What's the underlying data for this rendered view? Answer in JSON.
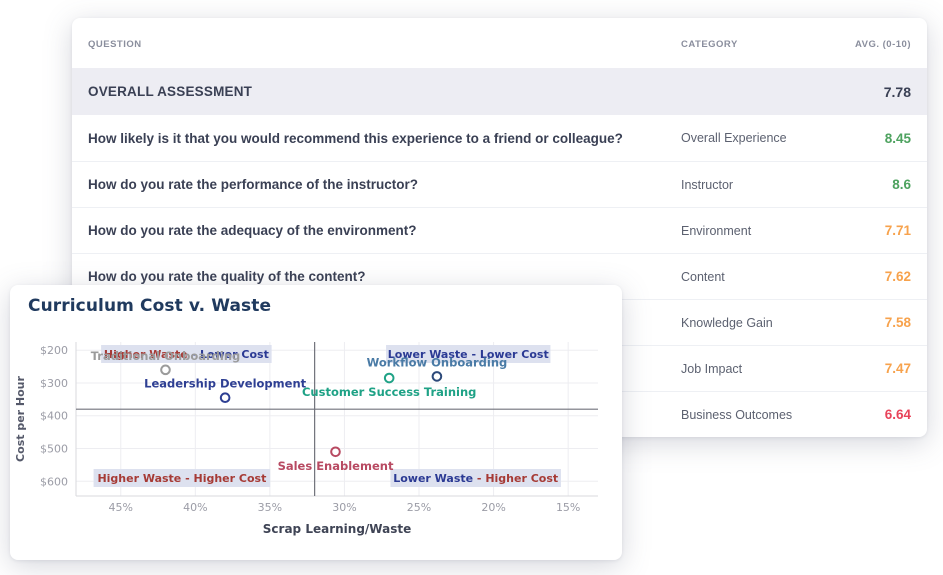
{
  "palette": {
    "green": "#4da25f",
    "orange": "#f7a24c",
    "red": "#e8435a",
    "dark": "#3a4054",
    "quadrant_navy": "#2b3a94",
    "quadrant_red": "#a63a35",
    "quadrant_box_bg": "#dde1ef",
    "grid": "#ededf1",
    "axis_line": "#d9dade",
    "divider": "#71727b",
    "tick_text": "#9b9ca6"
  },
  "table": {
    "headers": [
      "QUESTION",
      "CATEGORY",
      "AVG. (0-10)"
    ],
    "summary_row": {
      "label": "OVERALL ASSESSMENT",
      "value": "7.78"
    },
    "rows": [
      {
        "question": "How likely is it that you would recommend this experience to a friend or colleague?",
        "category": "Overall Experience",
        "value": "8.45",
        "status": "green"
      },
      {
        "question": "How do you rate the performance of the instructor?",
        "category": "Instructor",
        "value": "8.6",
        "status": "green"
      },
      {
        "question": "How do you rate the adequacy of the environment?",
        "category": "Environment",
        "value": "7.71",
        "status": "orange"
      },
      {
        "question": "How do you rate the quality of the content?",
        "category": "Content",
        "value": "7.62",
        "status": "orange"
      },
      {
        "question": "",
        "category": "Knowledge Gain",
        "value": "7.58",
        "status": "orange"
      },
      {
        "question": "",
        "category": "Job Impact",
        "value": "7.47",
        "status": "orange"
      },
      {
        "question": "",
        "category": "Business Outcomes",
        "value": "6.64",
        "status": "red"
      }
    ]
  },
  "chart_data": {
    "type": "scatter",
    "title": "Curriculum Cost v. Waste",
    "xlabel": "Scrap Learning/Waste",
    "ylabel": "Cost per Hour",
    "x_axis_reversed": true,
    "y_axis_inverted": true,
    "xlim": [
      48,
      13
    ],
    "ylim": [
      175,
      645
    ],
    "x_ticks": [
      "45%",
      "40%",
      "35%",
      "30%",
      "25%",
      "20%",
      "15%"
    ],
    "x_tick_values": [
      45,
      40,
      35,
      30,
      25,
      20,
      15
    ],
    "y_ticks": [
      "$200",
      "$300",
      "$400",
      "$500",
      "$600"
    ],
    "y_tick_values": [
      200,
      300,
      400,
      500,
      600
    ],
    "divider_x": 32,
    "divider_y": 380,
    "grid": true,
    "points": [
      {
        "name": "Traditional Onboarding",
        "x": 42,
        "y": 260,
        "color": "#9b9b9b",
        "label_pos": "above"
      },
      {
        "name": "Leadership Development",
        "x": 38,
        "y": 345,
        "color": "#2e3f93",
        "label_pos": "above"
      },
      {
        "name": "Customer Success Training",
        "x": 27,
        "y": 285,
        "color": "#1fa286",
        "label_pos": "below"
      },
      {
        "name": "Workflow Onboarding",
        "x": 23.8,
        "y": 280,
        "color": "#2d4a7a",
        "text_color": "#4a7ba6",
        "label_pos": "above"
      },
      {
        "name": "Sales Enablement",
        "x": 30.6,
        "y": 510,
        "color": "#b84a62",
        "label_pos": "below"
      }
    ],
    "quadrant_labels": [
      {
        "pos": "top-left",
        "parts": [
          {
            "text": "Higher Waste",
            "color": "red"
          },
          {
            "text": " - Lower Cost",
            "color": "navy"
          }
        ]
      },
      {
        "pos": "top-right",
        "parts": [
          {
            "text": "Lower Waste - Lower Cost",
            "color": "navy"
          }
        ]
      },
      {
        "pos": "bottom-left",
        "parts": [
          {
            "text": "Higher Waste - Higher Cost",
            "color": "red"
          }
        ]
      },
      {
        "pos": "bottom-right",
        "parts": [
          {
            "text": "Lower Waste",
            "color": "navy"
          },
          {
            "text": " - Higher Cost",
            "color": "red"
          }
        ]
      }
    ]
  }
}
